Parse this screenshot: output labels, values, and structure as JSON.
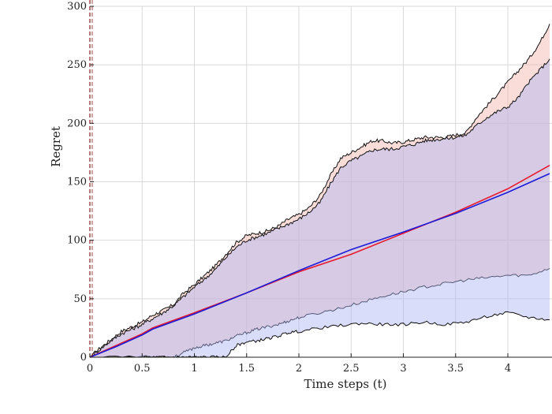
{
  "chart_data": {
    "type": "area",
    "title": "",
    "xlabel": "Time steps (t)",
    "ylabel": "Regret",
    "xlim": [
      0,
      4.4
    ],
    "ylim": [
      0,
      300
    ],
    "grid": true,
    "x_ticks": [
      {
        "value": 0,
        "label": "0"
      },
      {
        "value": 0.5,
        "label": "0.5"
      },
      {
        "value": 1,
        "label": "1"
      },
      {
        "value": 1.5,
        "label": "1.5"
      },
      {
        "value": 2,
        "label": "2"
      },
      {
        "value": 2.5,
        "label": "2.5"
      },
      {
        "value": 3,
        "label": "3"
      },
      {
        "value": 3.5,
        "label": "3.5"
      },
      {
        "value": 4,
        "label": "4"
      }
    ],
    "y_ticks": [
      {
        "value": 0,
        "label": "0"
      },
      {
        "value": 50,
        "label": "50"
      },
      {
        "value": 100,
        "label": "100"
      },
      {
        "value": 150,
        "label": "150"
      },
      {
        "value": 200,
        "label": "200"
      },
      {
        "value": 250,
        "label": "250"
      },
      {
        "value": 300,
        "label": "300"
      }
    ],
    "colors": {
      "red": "#e8192c",
      "blue": "#1c1cd8",
      "red_band": "#f4b4aa",
      "blue_band": "#aab4f4",
      "band_edge": "#111111",
      "grid": "#d9d9d9"
    },
    "series": [
      {
        "color": "red",
        "mean": [
          [
            0,
            0
          ],
          [
            0.25,
            10
          ],
          [
            0.5,
            20
          ],
          [
            0.6,
            25
          ],
          [
            1,
            38
          ],
          [
            1.5,
            55
          ],
          [
            2,
            73
          ],
          [
            2.5,
            88
          ],
          [
            3,
            106
          ],
          [
            3.5,
            124
          ],
          [
            4,
            144
          ],
          [
            4.4,
            164
          ]
        ],
        "upper": [
          [
            0,
            0
          ],
          [
            0.1,
            8
          ],
          [
            0.2,
            15
          ],
          [
            0.3,
            22
          ],
          [
            0.4,
            26
          ],
          [
            0.5,
            30
          ],
          [
            0.6,
            36
          ],
          [
            0.7,
            40
          ],
          [
            0.8,
            45
          ],
          [
            0.9,
            55
          ],
          [
            1,
            62
          ],
          [
            1.1,
            70
          ],
          [
            1.2,
            78
          ],
          [
            1.3,
            88
          ],
          [
            1.4,
            98
          ],
          [
            1.5,
            104
          ],
          [
            1.6,
            106
          ],
          [
            1.7,
            108
          ],
          [
            1.8,
            112
          ],
          [
            1.9,
            118
          ],
          [
            2,
            122
          ],
          [
            2.1,
            128
          ],
          [
            2.2,
            138
          ],
          [
            2.3,
            155
          ],
          [
            2.4,
            170
          ],
          [
            2.5,
            175
          ],
          [
            2.6,
            180
          ],
          [
            2.7,
            185
          ],
          [
            2.8,
            185
          ],
          [
            2.9,
            183
          ],
          [
            3,
            184
          ],
          [
            3.1,
            186
          ],
          [
            3.2,
            188
          ],
          [
            3.3,
            188
          ],
          [
            3.4,
            188
          ],
          [
            3.5,
            190
          ],
          [
            3.6,
            192
          ],
          [
            3.7,
            205
          ],
          [
            3.8,
            215
          ],
          [
            3.9,
            225
          ],
          [
            4,
            235
          ],
          [
            4.1,
            245
          ],
          [
            4.2,
            255
          ],
          [
            4.3,
            268
          ],
          [
            4.4,
            285
          ]
        ],
        "lower": [
          [
            0,
            0
          ],
          [
            0.6,
            0
          ],
          [
            0.7,
            0
          ],
          [
            0.8,
            0
          ],
          [
            0.9,
            4
          ],
          [
            1,
            8
          ],
          [
            1.1,
            10
          ],
          [
            1.2,
            12
          ],
          [
            1.3,
            14
          ],
          [
            1.4,
            18
          ],
          [
            1.5,
            21
          ],
          [
            1.6,
            24
          ],
          [
            1.7,
            26
          ],
          [
            1.8,
            28
          ],
          [
            1.9,
            31
          ],
          [
            2,
            34
          ],
          [
            2.2,
            38
          ],
          [
            2.4,
            42
          ],
          [
            2.6,
            47
          ],
          [
            2.8,
            52
          ],
          [
            3,
            56
          ],
          [
            3.2,
            60
          ],
          [
            3.4,
            63
          ],
          [
            3.6,
            66
          ],
          [
            3.8,
            68
          ],
          [
            4,
            70
          ],
          [
            4.2,
            70
          ],
          [
            4.4,
            76
          ]
        ]
      },
      {
        "color": "blue",
        "mean": [
          [
            0,
            0
          ],
          [
            0.25,
            9
          ],
          [
            0.5,
            19
          ],
          [
            0.6,
            24
          ],
          [
            1,
            37
          ],
          [
            1.5,
            55
          ],
          [
            2,
            74
          ],
          [
            2.5,
            92
          ],
          [
            3,
            107
          ],
          [
            3.5,
            123
          ],
          [
            4,
            141
          ],
          [
            4.4,
            157
          ]
        ],
        "upper": [
          [
            0,
            0
          ],
          [
            0.1,
            7
          ],
          [
            0.2,
            14
          ],
          [
            0.3,
            20
          ],
          [
            0.4,
            24
          ],
          [
            0.5,
            28
          ],
          [
            0.6,
            33
          ],
          [
            0.7,
            38
          ],
          [
            0.8,
            44
          ],
          [
            0.9,
            52
          ],
          [
            1,
            60
          ],
          [
            1.1,
            67
          ],
          [
            1.2,
            75
          ],
          [
            1.3,
            85
          ],
          [
            1.4,
            94
          ],
          [
            1.5,
            100
          ],
          [
            1.6,
            103
          ],
          [
            1.7,
            106
          ],
          [
            1.8,
            110
          ],
          [
            1.9,
            114
          ],
          [
            2,
            118
          ],
          [
            2.1,
            124
          ],
          [
            2.2,
            132
          ],
          [
            2.3,
            148
          ],
          [
            2.4,
            162
          ],
          [
            2.5,
            168
          ],
          [
            2.6,
            172
          ],
          [
            2.7,
            177
          ],
          [
            2.8,
            178
          ],
          [
            2.9,
            178
          ],
          [
            3,
            180
          ],
          [
            3.1,
            182
          ],
          [
            3.2,
            185
          ],
          [
            3.3,
            186
          ],
          [
            3.4,
            187
          ],
          [
            3.5,
            188
          ],
          [
            3.6,
            190
          ],
          [
            3.7,
            198
          ],
          [
            3.8,
            205
          ],
          [
            3.9,
            210
          ],
          [
            4,
            214
          ],
          [
            4.1,
            222
          ],
          [
            4.2,
            235
          ],
          [
            4.3,
            245
          ],
          [
            4.4,
            255
          ]
        ],
        "lower": [
          [
            0,
            0
          ],
          [
            0.5,
            0
          ],
          [
            0.6,
            0
          ],
          [
            0.7,
            0
          ],
          [
            0.8,
            0
          ],
          [
            0.9,
            0
          ],
          [
            1,
            0
          ],
          [
            1.1,
            0
          ],
          [
            1.2,
            0
          ],
          [
            1.3,
            0
          ],
          [
            1.4,
            10
          ],
          [
            1.5,
            13
          ],
          [
            1.6,
            14
          ],
          [
            1.7,
            16
          ],
          [
            1.8,
            18
          ],
          [
            1.9,
            21
          ],
          [
            2,
            22
          ],
          [
            2.2,
            25
          ],
          [
            2.4,
            27
          ],
          [
            2.6,
            29
          ],
          [
            2.8,
            28
          ],
          [
            3,
            28
          ],
          [
            3.2,
            30
          ],
          [
            3.4,
            28
          ],
          [
            3.6,
            30
          ],
          [
            3.8,
            35
          ],
          [
            4,
            38
          ],
          [
            4.2,
            34
          ],
          [
            4.4,
            32
          ]
        ]
      }
    ]
  }
}
